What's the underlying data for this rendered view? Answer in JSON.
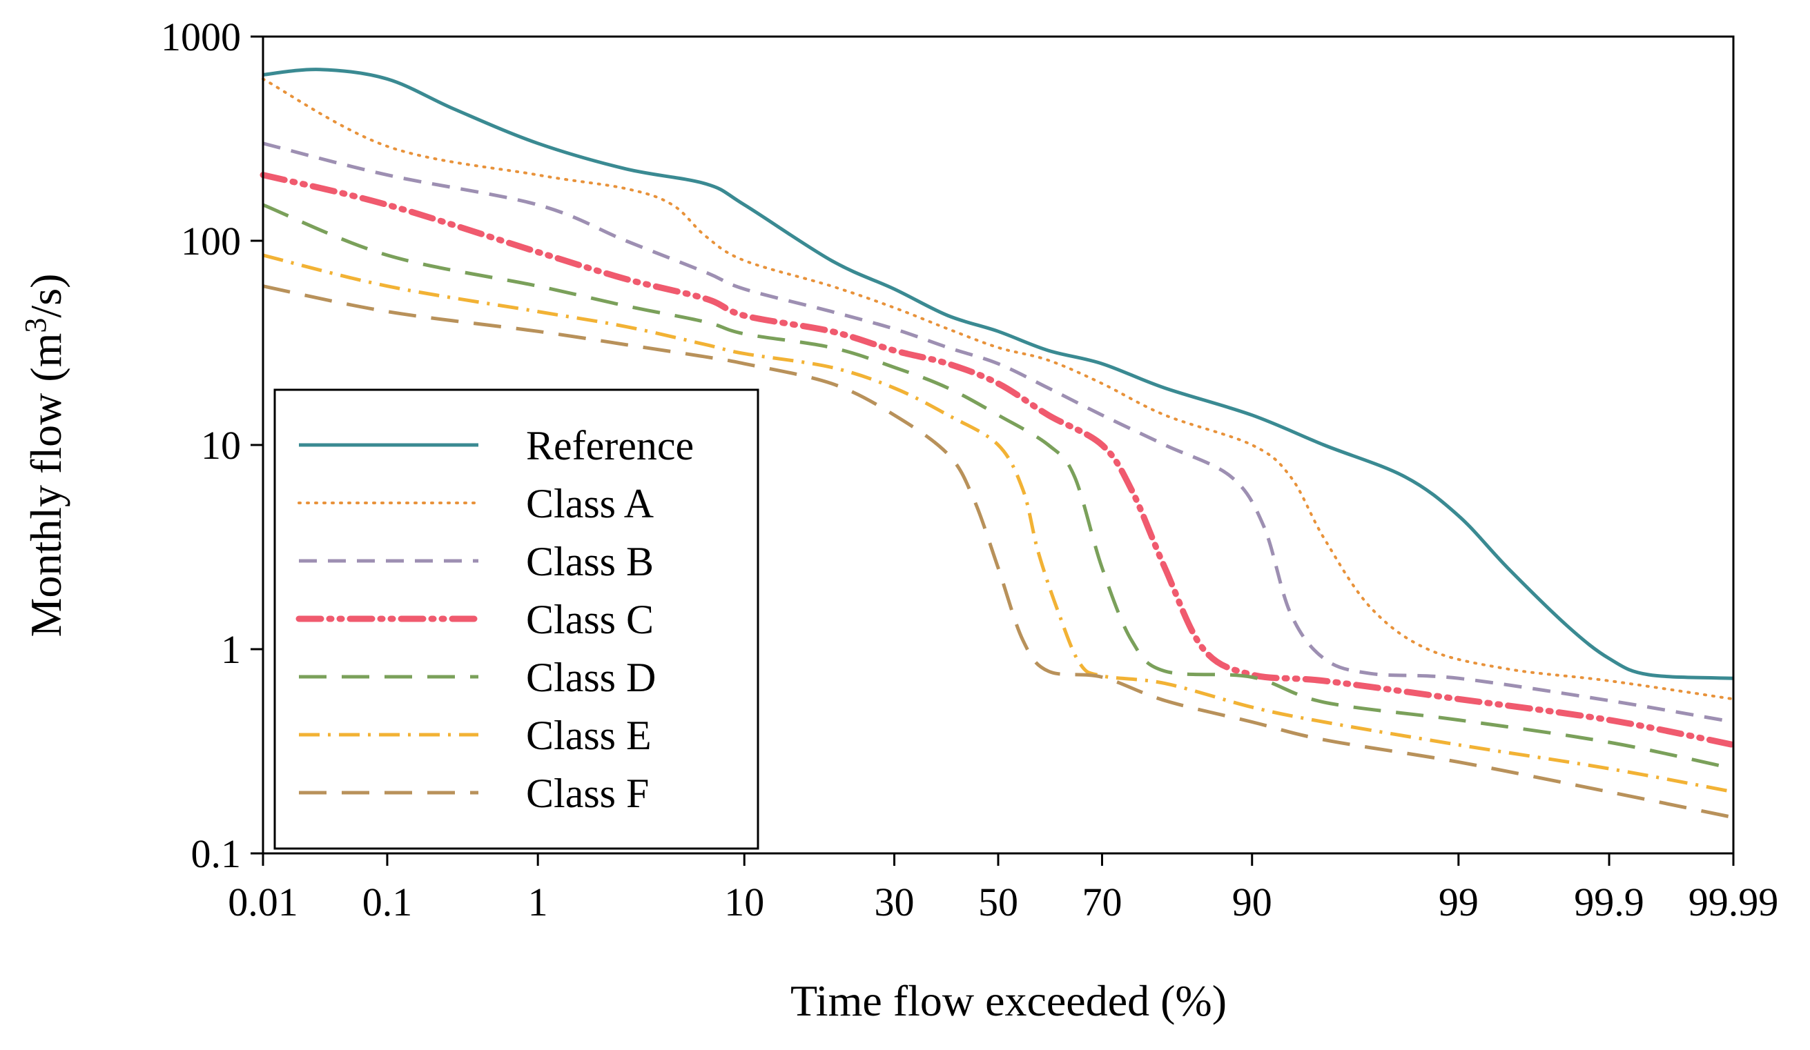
{
  "chart_data": {
    "type": "line",
    "title": "",
    "xlabel": "Time flow exceeded (%)",
    "ylabel": "Monthly flow (m3/s)",
    "ylabel_parts": {
      "prefix": "Monthly flow (m",
      "sup": "3",
      "suffix": "/s)"
    },
    "x_scale": "normal-probability",
    "y_scale": "log",
    "ylim": [
      0.1,
      1000
    ],
    "xlim": [
      0.01,
      99.99
    ],
    "x_ticks": [
      0.01,
      0.1,
      1,
      10,
      30,
      50,
      70,
      90,
      99,
      99.9,
      99.99
    ],
    "x_tick_labels": [
      "0.01",
      "0.1",
      "1",
      "10",
      "30",
      "50",
      "70",
      "90",
      "99",
      "99.9",
      "99.99"
    ],
    "y_ticks": [
      0.1,
      1,
      10,
      100,
      1000
    ],
    "y_tick_labels": [
      "0.1",
      "1",
      "10",
      "100",
      "1000"
    ],
    "legend_position": "lower-left",
    "series": [
      {
        "name": "Reference",
        "color": "#3a8a92",
        "style": "solid",
        "points": [
          [
            0.01,
            650
          ],
          [
            0.03,
            690
          ],
          [
            0.1,
            620
          ],
          [
            0.3,
            440
          ],
          [
            1,
            300
          ],
          [
            3,
            225
          ],
          [
            7,
            190
          ],
          [
            10,
            150
          ],
          [
            20,
            80
          ],
          [
            30,
            58
          ],
          [
            40,
            43
          ],
          [
            50,
            36
          ],
          [
            60,
            29
          ],
          [
            70,
            25
          ],
          [
            80,
            19
          ],
          [
            90,
            14
          ],
          [
            95,
            10
          ],
          [
            98,
            7
          ],
          [
            99,
            4.5
          ],
          [
            99.5,
            2.5
          ],
          [
            99.8,
            1.3
          ],
          [
            99.9,
            0.9
          ],
          [
            99.95,
            0.75
          ],
          [
            99.99,
            0.72
          ]
        ]
      },
      {
        "name": "Class A",
        "color": "#e8923a",
        "style": "dotted",
        "points": [
          [
            0.01,
            620
          ],
          [
            0.1,
            290
          ],
          [
            1,
            210
          ],
          [
            3,
            180
          ],
          [
            5,
            150
          ],
          [
            7,
            105
          ],
          [
            10,
            80
          ],
          [
            20,
            60
          ],
          [
            30,
            47
          ],
          [
            40,
            37
          ],
          [
            50,
            30
          ],
          [
            60,
            26
          ],
          [
            70,
            20
          ],
          [
            80,
            14
          ],
          [
            90,
            10
          ],
          [
            93,
            7
          ],
          [
            95,
            3.5
          ],
          [
            97,
            1.6
          ],
          [
            98.5,
            1.0
          ],
          [
            99.5,
            0.8
          ],
          [
            99.9,
            0.7
          ],
          [
            99.99,
            0.57
          ]
        ]
      },
      {
        "name": "Class B",
        "color": "#9d8fb2",
        "style": "dashed",
        "points": [
          [
            0.01,
            300
          ],
          [
            0.1,
            210
          ],
          [
            1,
            150
          ],
          [
            3,
            100
          ],
          [
            7,
            70
          ],
          [
            10,
            58
          ],
          [
            20,
            45
          ],
          [
            30,
            37
          ],
          [
            40,
            30
          ],
          [
            50,
            25
          ],
          [
            60,
            19
          ],
          [
            70,
            14
          ],
          [
            80,
            10
          ],
          [
            88,
            7
          ],
          [
            91,
            4
          ],
          [
            93,
            1.5
          ],
          [
            95,
            0.9
          ],
          [
            97,
            0.76
          ],
          [
            99,
            0.72
          ],
          [
            99.9,
            0.56
          ],
          [
            99.99,
            0.44
          ]
        ]
      },
      {
        "name": "Class C",
        "color": "#f05a6e",
        "style": "dashdotdot",
        "points": [
          [
            0.01,
            210
          ],
          [
            0.1,
            150
          ],
          [
            1,
            88
          ],
          [
            3,
            65
          ],
          [
            7,
            52
          ],
          [
            10,
            43
          ],
          [
            20,
            36
          ],
          [
            30,
            29
          ],
          [
            40,
            25
          ],
          [
            50,
            20
          ],
          [
            60,
            14
          ],
          [
            70,
            10
          ],
          [
            75,
            6
          ],
          [
            80,
            2.5
          ],
          [
            85,
            1.0
          ],
          [
            90,
            0.75
          ],
          [
            95,
            0.7
          ],
          [
            99,
            0.57
          ],
          [
            99.9,
            0.45
          ],
          [
            99.99,
            0.34
          ]
        ]
      },
      {
        "name": "Class D",
        "color": "#7aa05a",
        "style": "longdash",
        "points": [
          [
            0.01,
            150
          ],
          [
            0.1,
            85
          ],
          [
            1,
            60
          ],
          [
            3,
            48
          ],
          [
            7,
            40
          ],
          [
            10,
            35
          ],
          [
            20,
            30
          ],
          [
            30,
            24
          ],
          [
            40,
            19
          ],
          [
            50,
            14
          ],
          [
            60,
            10
          ],
          [
            65,
            7
          ],
          [
            70,
            2.5
          ],
          [
            75,
            1.1
          ],
          [
            80,
            0.78
          ],
          [
            90,
            0.73
          ],
          [
            95,
            0.55
          ],
          [
            99,
            0.45
          ],
          [
            99.9,
            0.35
          ],
          [
            99.99,
            0.26
          ]
        ]
      },
      {
        "name": "Class E",
        "color": "#f2b234",
        "style": "dashdot",
        "points": [
          [
            0.01,
            85
          ],
          [
            0.1,
            60
          ],
          [
            1,
            45
          ],
          [
            3,
            38
          ],
          [
            7,
            31
          ],
          [
            10,
            28
          ],
          [
            20,
            24
          ],
          [
            30,
            19
          ],
          [
            40,
            14
          ],
          [
            50,
            10
          ],
          [
            55,
            6
          ],
          [
            58,
            3
          ],
          [
            62,
            1.5
          ],
          [
            66,
            0.85
          ],
          [
            70,
            0.74
          ],
          [
            80,
            0.68
          ],
          [
            90,
            0.52
          ],
          [
            95,
            0.44
          ],
          [
            99,
            0.34
          ],
          [
            99.9,
            0.26
          ],
          [
            99.99,
            0.2
          ]
        ]
      },
      {
        "name": "Class F",
        "color": "#b8915a",
        "style": "longdash",
        "points": [
          [
            0.01,
            60
          ],
          [
            0.1,
            45
          ],
          [
            1,
            36
          ],
          [
            3,
            31
          ],
          [
            7,
            27
          ],
          [
            10,
            25
          ],
          [
            20,
            20
          ],
          [
            30,
            14
          ],
          [
            40,
            9
          ],
          [
            45,
            5.5
          ],
          [
            50,
            2.5
          ],
          [
            55,
            1.1
          ],
          [
            60,
            0.78
          ],
          [
            70,
            0.73
          ],
          [
            80,
            0.56
          ],
          [
            90,
            0.44
          ],
          [
            95,
            0.36
          ],
          [
            99,
            0.28
          ],
          [
            99.9,
            0.2
          ],
          [
            99.99,
            0.15
          ]
        ]
      }
    ]
  }
}
